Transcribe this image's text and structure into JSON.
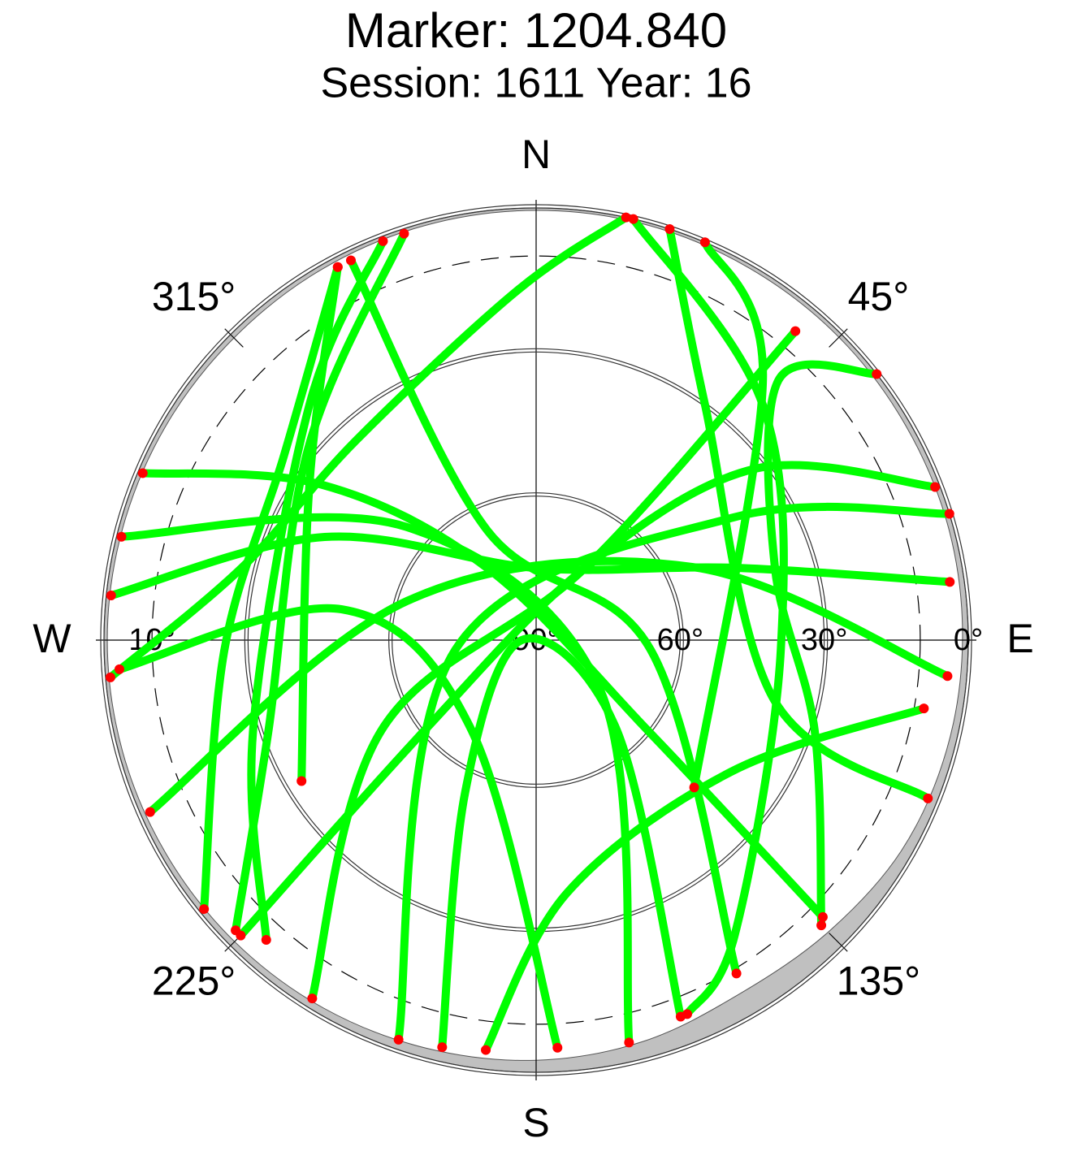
{
  "chart_data": {
    "type": "skyplot",
    "title": "Marker: 1204.840",
    "subtitle": "Session: 1611 Year: 16",
    "rlim": [
      0,
      90
    ],
    "rticks": [
      {
        "value": 0,
        "label": "0°"
      },
      {
        "value": 30,
        "label": "30°"
      },
      {
        "value": 60,
        "label": "60°"
      },
      {
        "value": 90,
        "label": "90°"
      }
    ],
    "dashed_rticks": [
      {
        "value": 10,
        "label": "10°"
      }
    ],
    "azticks": [
      {
        "value": 0,
        "label": "N"
      },
      {
        "value": 45,
        "label": "45°"
      },
      {
        "value": 90,
        "label": "E"
      },
      {
        "value": 135,
        "label": "135°"
      },
      {
        "value": 180,
        "label": "S"
      },
      {
        "value": 225,
        "label": "225°"
      },
      {
        "value": 270,
        "label": "W"
      },
      {
        "value": 315,
        "label": "315°"
      }
    ],
    "endpoint_color": "#ff0000",
    "mask": {
      "color": "#c0c0c0",
      "az": [
        0,
        15,
        30,
        45,
        60,
        75,
        90,
        105,
        120,
        135,
        150,
        165,
        180,
        195,
        210,
        225,
        240,
        255,
        270,
        285,
        300,
        315,
        330,
        345
      ],
      "el": [
        0.5,
        0.5,
        0.7,
        0.8,
        1,
        1,
        1.2,
        1.5,
        2.2,
        4,
        5,
        3.5,
        2.5,
        2,
        1.5,
        1.2,
        1,
        0.8,
        0.7,
        0.8,
        0.9,
        1,
        0.8,
        0.6
      ]
    },
    "series": [
      {
        "color": "#00ff00",
        "az": [
          342,
          310,
          251,
          226
        ],
        "el": [
          1,
          28,
          31,
          3
        ]
      },
      {
        "color": "#00ff00",
        "az": [
          13,
          44,
          92,
          146,
          158
        ],
        "el": [
          0,
          22,
          39,
          16,
          6
        ]
      },
      {
        "color": "#00ff00",
        "az": [
          276,
          296,
          0,
          70,
          82
        ],
        "el": [
          1,
          41,
          75,
          46,
          3
        ]
      },
      {
        "color": "#00ff00",
        "az": [
          293,
          306,
          326,
          129,
          134
        ],
        "el": [
          1,
          35,
          72,
          60,
          7
        ]
      },
      {
        "color": "#00ff00",
        "az": [
          69,
          52,
          34,
          231,
          225
        ],
        "el": [
          1,
          32,
          72,
          60,
          3
        ]
      },
      {
        "color": "#00ff00",
        "az": [
          332,
          304,
          239
        ],
        "el": [
          2,
          33,
          33
        ]
      },
      {
        "color": "#00ff00",
        "az": [
          23,
          41,
          133
        ],
        "el": [
          0,
          18,
          45
        ]
      },
      {
        "color": "#00ff00",
        "az": [
          222,
          252,
          316,
          339
        ],
        "el": [
          6,
          28,
          22,
          1
        ]
      },
      {
        "color": "#00ff00",
        "az": [
          193,
          205,
          270,
          138,
          159
        ],
        "el": [
          3,
          55,
          87,
          65,
          6
        ]
      },
      {
        "color": "#00ff00",
        "az": [
          177,
          216,
          279,
          266
        ],
        "el": [
          5,
          67,
          49,
          3
        ]
      },
      {
        "color": "#00ff00",
        "az": [
          199,
          263,
          58,
          73
        ],
        "el": [
          2,
          73,
          42,
          0
        ]
      },
      {
        "color": "#00ff00",
        "az": [
          167,
          128,
          311,
          284
        ],
        "el": [
          4,
          73,
          54,
          1
        ]
      },
      {
        "color": "#00ff00",
        "az": [
          135,
          108,
          73,
          43,
          52
        ],
        "el": [
          6,
          29,
          38,
          16,
          0
        ]
      },
      {
        "color": "#00ff00",
        "az": [
          95,
          65,
          287,
          246
        ],
        "el": [
          4,
          54,
          62,
          2
        ]
      },
      {
        "color": "#00ff00",
        "az": [
          100,
          124,
          173,
          187
        ],
        "el": [
          8,
          41,
          37,
          4
        ]
      },
      {
        "color": "#00ff00",
        "az": [
          231,
          268,
          306,
          332
        ],
        "el": [
          1,
          25,
          25,
          2
        ]
      },
      {
        "color": "#00ff00",
        "az": [
          265,
          284,
          318,
          357,
          12
        ],
        "el": [
          1,
          27,
          34,
          17,
          0
        ]
      },
      {
        "color": "#00ff00",
        "az": [
          112,
          104,
          36,
          18
        ],
        "el": [
          2,
          39,
          30,
          0
        ]
      },
      {
        "color": "#00ff00",
        "az": [
          149,
          95,
          336,
          334
        ],
        "el": [
          9,
          66,
          65,
          2
        ]
      },
      {
        "color": "#00ff00",
        "az": [
          212,
          240,
          34,
          40
        ],
        "el": [
          2,
          53,
          72,
          6
        ]
      }
    ]
  }
}
